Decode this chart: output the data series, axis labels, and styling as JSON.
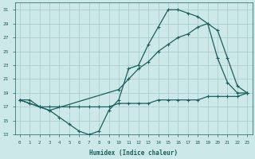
{
  "xlabel": "Humidex (Indice chaleur)",
  "xlim": [
    -0.5,
    23.5
  ],
  "ylim": [
    13,
    32
  ],
  "xticks": [
    0,
    1,
    2,
    3,
    4,
    5,
    6,
    7,
    8,
    9,
    10,
    11,
    12,
    13,
    14,
    15,
    16,
    17,
    18,
    19,
    20,
    21,
    22,
    23
  ],
  "yticks": [
    13,
    15,
    17,
    19,
    21,
    23,
    25,
    27,
    29,
    31
  ],
  "bg_color": "#cce8e8",
  "grid_color": "#aad0d0",
  "line_color": "#1a5f5f",
  "line_min_x": [
    0,
    1,
    2,
    3,
    4,
    5,
    6,
    7,
    8,
    9,
    10,
    11,
    12,
    13,
    14,
    15,
    16,
    17,
    18,
    19,
    20,
    21,
    22,
    23
  ],
  "line_min_y": [
    18,
    18,
    17,
    17,
    17,
    17,
    17,
    17,
    17,
    17,
    17.5,
    17.5,
    17.5,
    17.5,
    18,
    18,
    18,
    18,
    18,
    18.5,
    18.5,
    18.5,
    18.5,
    19
  ],
  "line_wavy_x": [
    0,
    1,
    2,
    3,
    4,
    5,
    6,
    7,
    8,
    9,
    10,
    11,
    12,
    13,
    14,
    15,
    16,
    17,
    18,
    19,
    20,
    21,
    22,
    23
  ],
  "line_wavy_y": [
    18,
    17.5,
    17,
    16.5,
    15.5,
    14.5,
    13.5,
    13,
    13.5,
    16.5,
    18,
    22.5,
    23,
    26,
    28.5,
    31,
    31,
    30.5,
    30,
    29,
    24,
    20.5,
    19,
    19
  ],
  "line_diag_x": [
    0,
    1,
    2,
    3,
    10,
    11,
    12,
    13,
    14,
    15,
    16,
    17,
    18,
    19,
    20,
    21,
    22,
    23
  ],
  "line_diag_y": [
    18,
    17.5,
    17,
    16.5,
    19.5,
    21,
    22.5,
    23.5,
    25,
    26,
    27,
    27.5,
    28.5,
    29,
    28,
    24,
    20,
    19
  ]
}
